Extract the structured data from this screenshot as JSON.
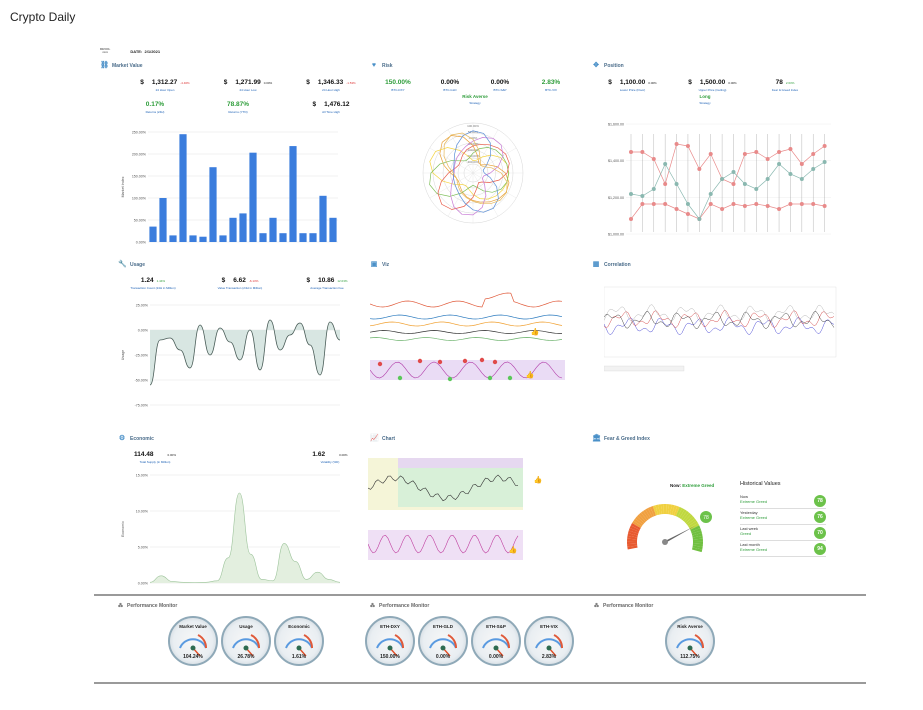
{
  "app": {
    "title": "Crypto Daily"
  },
  "date": {
    "logo": "DEVOL",
    "label": "DATE:",
    "value": "2/1/2021"
  },
  "panels": {
    "market_value": {
      "title": "Market Value",
      "items": [
        {
          "cur": "$",
          "value": "1,312.27",
          "pct": "-4.46%",
          "label": "24 Hour Open"
        },
        {
          "cur": "$",
          "value": "1,271.99",
          "pct": "0.00%",
          "label": "24 Hour Low"
        },
        {
          "cur": "$",
          "value": "1,346.33",
          "pct": "-1.53%",
          "label": "24 Hour High"
        },
        {
          "value": "0.17%",
          "label": "Returns (24H)"
        },
        {
          "value": "78.87%",
          "label": "Returns (YTD)"
        },
        {
          "cur": "$",
          "value": "1,476.12",
          "label": "All Time High"
        }
      ],
      "ylabel": "Market Index",
      "yticks": [
        "250.00%",
        "200.00%",
        "150.00%",
        "100.00%",
        "50.00%",
        "0.00%"
      ]
    },
    "risk": {
      "title": "Risk",
      "items": [
        {
          "value": "150.00%",
          "label": "BTC-DXY"
        },
        {
          "value": "0.00%",
          "label": "BTC-GLD"
        },
        {
          "value": "0.00%",
          "label": "BTC-S&P"
        },
        {
          "value": "2.83%",
          "label": "BTC-VIX"
        }
      ],
      "strategy_value": "Risk Averse",
      "strategy_label": "Strategy",
      "rticks": [
        "100.00%",
        "50.00%",
        "0.00%",
        "-50.00%",
        "-100.00%",
        "-200.00%",
        "-300.00%"
      ]
    },
    "position": {
      "title": "Position",
      "items": [
        {
          "cur": "$",
          "value": "1,100.00",
          "pct": "0.00%",
          "label": "Lower Price (Floor)"
        },
        {
          "cur": "$",
          "value": "1,500.00",
          "pct": "0.00%",
          "label": "Upper Price (Ceiling)"
        },
        {
          "value": "78",
          "pct": "2.63%",
          "label": "Fear & Greed Index"
        }
      ],
      "strategy_value": "Long",
      "strategy_label": "Strategy",
      "yticks": [
        "$1,600.00",
        "$1,400.00",
        "$1,200.00",
        "$1,000.00"
      ]
    },
    "usage": {
      "title": "Usage",
      "items": [
        {
          "value": "1.24",
          "pct": "1.44%",
          "label": "Transaction Count (24H in Million)"
        },
        {
          "cur": "$",
          "value": "6.62",
          "pct": "-6.13%",
          "label": "Value Transaction (24H in Million)"
        },
        {
          "cur": "$",
          "value": "10.86",
          "pct": "12.03%",
          "label": "Average Transaction Fee"
        }
      ],
      "ylabel": "Usage",
      "yticks": [
        "25.00%",
        "0.00%",
        "-25.00%",
        "-50.00%",
        "-75.00%"
      ]
    },
    "viz": {
      "title": "Viz"
    },
    "correlation": {
      "title": "Correlation"
    },
    "economic": {
      "title": "Economic",
      "items": [
        {
          "value": "114.48",
          "pct": "0.00%",
          "label": "Total Supply (in Million)"
        },
        {
          "value": "1.62",
          "pct": "0.00%",
          "label": "Volatility (%D)"
        }
      ],
      "ylabel": "Economic",
      "yticks": [
        "15.00%",
        "10.00%",
        "5.00%",
        "0.00%"
      ]
    },
    "chart": {
      "title": "Chart"
    },
    "fear_greed": {
      "title": "Fear & Greed Index",
      "now_label": "Now:",
      "now_status": "Extreme Greed",
      "gauge_value": "78",
      "historical_title": "Historical Values",
      "history": [
        {
          "name": "Now",
          "status": "Extreme Greed",
          "value": "78"
        },
        {
          "name": "Yesterday",
          "status": "Extreme Greed",
          "value": "76"
        },
        {
          "name": "Last week",
          "status": "Greed",
          "value": "70"
        },
        {
          "name": "Last month",
          "status": "Extreme Greed",
          "value": "94"
        }
      ]
    }
  },
  "performance": {
    "title": "Performance Monitor",
    "groups": [
      [
        {
          "label": "Market Value",
          "value": "104.24%"
        },
        {
          "label": "Usage",
          "value": "26.78%"
        },
        {
          "label": "Economic",
          "value": "1.61%"
        }
      ],
      [
        {
          "label": "ETH-DXY",
          "value": "150.00%"
        },
        {
          "label": "ETH-GLD",
          "value": "0.00%"
        },
        {
          "label": "ETH-S&P",
          "value": "0.00%"
        },
        {
          "label": "ETH-VIX",
          "value": "2.83%"
        }
      ],
      [
        {
          "label": "Risk Averse",
          "value": "112.75%"
        }
      ]
    ]
  },
  "chart_data": [
    {
      "type": "bar",
      "title": "",
      "ylabel": "Market Index",
      "ylim": [
        0,
        250
      ],
      "values": [
        35,
        100,
        15,
        245,
        15,
        12,
        170,
        15,
        55,
        65,
        203,
        20,
        55,
        20,
        218,
        20,
        20,
        105,
        55
      ]
    },
    {
      "type": "area",
      "ylabel": "Usage",
      "ylim": [
        -75,
        25
      ],
      "values": [
        -55,
        -10,
        -8,
        -20,
        -38,
        5,
        -25,
        2,
        -12,
        -30,
        0,
        -40,
        10,
        -20,
        -5,
        7,
        -15,
        -45,
        8,
        -10
      ]
    },
    {
      "type": "area",
      "ylabel": "Economic",
      "ylim": [
        0,
        15
      ],
      "values": [
        0.1,
        1.0,
        0.2,
        0.1,
        0.05,
        0.1,
        0.3,
        3.5,
        12.5,
        4,
        0.5,
        0.3,
        5.5,
        3,
        0.5,
        1.5,
        0.5,
        0.1
      ]
    }
  ]
}
